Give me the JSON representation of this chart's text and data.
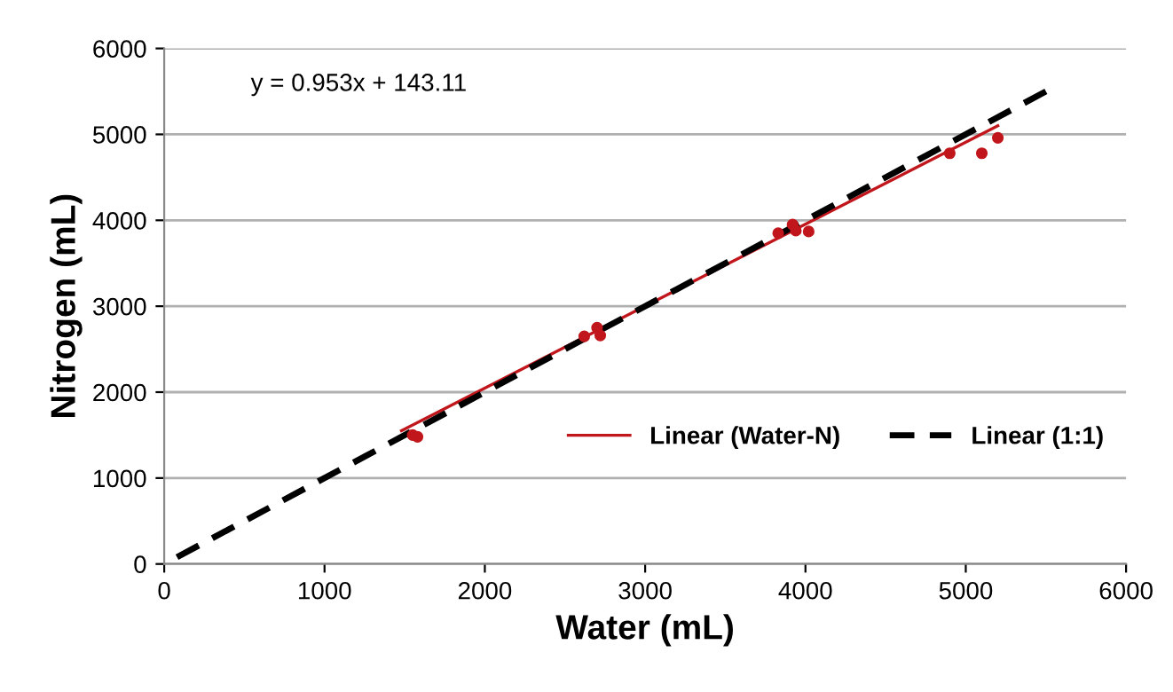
{
  "chart_data": {
    "type": "scatter",
    "xlabel": "Water (mL)",
    "ylabel": "Nitrogen (mL)",
    "xlim": [
      0,
      6000
    ],
    "ylim": [
      0,
      6000
    ],
    "xticks": [
      0,
      1000,
      2000,
      3000,
      4000,
      5000,
      6000
    ],
    "yticks": [
      0,
      1000,
      2000,
      3000,
      4000,
      5000,
      6000
    ],
    "grid": "y",
    "legend": "bottom right",
    "annotations": [
      "y = 0.953x + 143.11"
    ],
    "series": [
      {
        "marker": "circle",
        "color": "#c0161c",
        "x": [
          1550,
          1580,
          2620,
          2700,
          2720,
          3830,
          3920,
          3940,
          4020,
          4900,
          5100,
          5200
        ],
        "values": [
          1500,
          1480,
          2650,
          2750,
          2660,
          3850,
          3950,
          3880,
          3870,
          4780,
          4780,
          4960
        ]
      },
      {
        "type": "line",
        "name": "Linear (Water-N)",
        "color": "#c0161c",
        "line_style": "solid",
        "x": [
          1480,
          5200
        ],
        "values": [
          1550,
          5100
        ],
        "marker": "none"
      },
      {
        "type": "line",
        "name": "Linear (1:1)",
        "color": "#000000",
        "line_style": "dashed",
        "x": [
          0,
          5500
        ],
        "values": [
          0,
          5500
        ],
        "marker": "none"
      }
    ]
  }
}
